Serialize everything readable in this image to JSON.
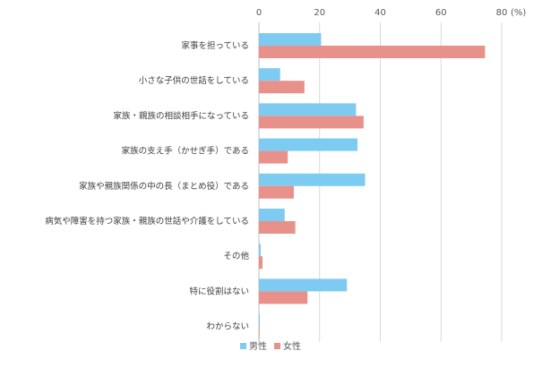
{
  "chart_data": {
    "type": "bar",
    "orientation": "horizontal",
    "title": "",
    "xlabel": "",
    "ylabel": "",
    "unit_label": "(%)",
    "xlim": [
      0,
      80
    ],
    "xticks": [
      0,
      20,
      40,
      60,
      80
    ],
    "x_axis_position": "top",
    "grid": true,
    "legend_position": "bottom",
    "categories": [
      "家事を担っている",
      "小さな子供の世話をしている",
      "家族・親族の相談相手になっている",
      "家族の支え手（かせぎ手）である",
      "家族や親族関係の中の長（まとめ役）である",
      "病気や障害を持つ家族・親族の世話や介護をしている",
      "その他",
      "特に役割はない",
      "わからない"
    ],
    "series": [
      {
        "name": "男性",
        "color": "#7ecbf1",
        "values": [
          20.5,
          7,
          32,
          32.5,
          35,
          8.5,
          0.6,
          29,
          0.3
        ]
      },
      {
        "name": "女性",
        "color": "#e8918a",
        "values": [
          74.5,
          15,
          34.5,
          9.5,
          11.5,
          12,
          1.2,
          16,
          0.2
        ]
      }
    ]
  }
}
